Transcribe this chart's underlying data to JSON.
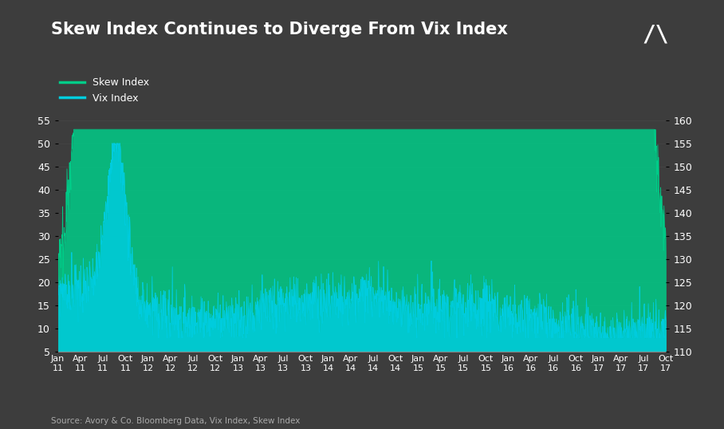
{
  "title": "Skew Index Continues to Diverge From Vix Index",
  "background_color": "#3d3d3d",
  "plot_bg_color": "#3d3d3d",
  "text_color": "#ffffff",
  "grid_color": "#555555",
  "skew_color": "#00cc88",
  "vix_color": "#00ccdd",
  "source_text": "Source: Avory & Co. Bloomberg Data, Vix Index, Skew Index",
  "left_ylim": [
    5,
    55
  ],
  "right_ylim": [
    110,
    160
  ],
  "left_yticks": [
    5,
    10,
    15,
    20,
    25,
    30,
    35,
    40,
    45,
    50,
    55
  ],
  "right_yticks": [
    110,
    115,
    120,
    125,
    130,
    135,
    140,
    145,
    150,
    155,
    160
  ],
  "xtick_labels_row1": [
    "Jan",
    "Apr",
    "Jul",
    "Oct",
    "Jan",
    "Apr",
    "Jul",
    "Oct",
    "Jan",
    "Apr",
    "Jul",
    "Oct",
    "Jan",
    "Apr",
    "Jul",
    "Oct",
    "Jan",
    "Apr",
    "Jul",
    "Oct",
    "Jan",
    "Apr",
    "Jul",
    "Oct",
    "Jan",
    "Apr",
    "Jul",
    "Oct"
  ],
  "xtick_labels_row2": [
    "11",
    "11",
    "11",
    "11",
    "12",
    "12",
    "12",
    "12",
    "13",
    "13",
    "13",
    "13",
    "14",
    "14",
    "14",
    "14",
    "15",
    "15",
    "15",
    "15",
    "16",
    "16",
    "16",
    "16",
    "17",
    "17",
    "17",
    "17"
  ],
  "num_points": 1680
}
